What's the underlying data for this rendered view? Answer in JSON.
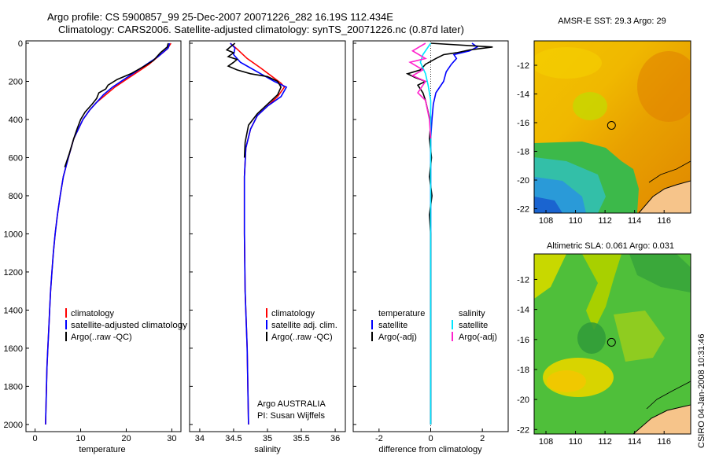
{
  "title_line1": "Argo profile: CS 5900857_99 25-Dec-2007 20071226_282 16.19S 112.434E",
  "title_line2": "Climatology: CARS2006. Satellite-adjusted climatology: synTS_20071226.nc (0.87d later)",
  "stamp": "CSIRO 04-Jan-2008 10:31:46",
  "colors": {
    "clim": "#ff0000",
    "sat": "#0000ff",
    "argo": "#000000",
    "sal_sat": "#00e5ff",
    "sal_argo": "#ff22cc"
  },
  "chart_data": [
    {
      "type": "line",
      "id": "temperature",
      "xlabel": "temperature",
      "ylabel": "",
      "xlim": [
        -2,
        32
      ],
      "ylim": [
        2050,
        0
      ],
      "xticks": [
        "0",
        "10",
        "20",
        "30"
      ],
      "yticks": [
        "0",
        "200",
        "400",
        "600",
        "800",
        "1000",
        "1200",
        "1400",
        "1600",
        "1800",
        "2000"
      ],
      "legend": [
        "climatology",
        "satellite-adjusted climatology",
        "Argo(..raw -QC)"
      ],
      "series": [
        {
          "name": "climatology",
          "color": "#ff0000",
          "points": [
            [
              29.8,
              0
            ],
            [
              29,
              30
            ],
            [
              27,
              70
            ],
            [
              25,
              110
            ],
            [
              22.5,
              150
            ],
            [
              20,
              190
            ],
            [
              17.5,
              230
            ],
            [
              15.5,
              270
            ],
            [
              13.5,
              310
            ],
            [
              12,
              350
            ],
            [
              10.5,
              400
            ],
            [
              9.5,
              450
            ],
            [
              8.5,
              500
            ],
            [
              7.3,
              600
            ],
            [
              6.2,
              700
            ],
            [
              5.5,
              800
            ],
            [
              4.9,
              900
            ],
            [
              4.4,
              1000
            ],
            [
              4,
              1100
            ],
            [
              3.7,
              1200
            ],
            [
              3.4,
              1300
            ],
            [
              3.2,
              1400
            ],
            [
              3,
              1500
            ],
            [
              2.8,
              1600
            ],
            [
              2.6,
              1700
            ],
            [
              2.5,
              1800
            ],
            [
              2.4,
              1900
            ],
            [
              2.3,
              2000
            ]
          ]
        },
        {
          "name": "satellite-adjusted climatology",
          "color": "#0000ff",
          "points": [
            [
              29.5,
              0
            ],
            [
              29.2,
              25
            ],
            [
              27,
              70
            ],
            [
              24.5,
              110
            ],
            [
              22,
              150
            ],
            [
              19.5,
              190
            ],
            [
              17,
              230
            ],
            [
              15,
              270
            ],
            [
              13.5,
              310
            ],
            [
              12,
              350
            ],
            [
              10.5,
              400
            ],
            [
              9.5,
              450
            ],
            [
              8.5,
              500
            ],
            [
              7.3,
              600
            ],
            [
              6.2,
              700
            ],
            [
              5.5,
              800
            ],
            [
              4.9,
              900
            ],
            [
              4.4,
              1000
            ],
            [
              4,
              1100
            ],
            [
              3.7,
              1200
            ],
            [
              3.4,
              1300
            ],
            [
              3.2,
              1400
            ],
            [
              3,
              1500
            ],
            [
              2.8,
              1600
            ],
            [
              2.6,
              1700
            ],
            [
              2.5,
              1800
            ],
            [
              2.4,
              1900
            ],
            [
              2.3,
              2000
            ]
          ]
        },
        {
          "name": "Argo(..raw -QC)",
          "color": "#000000",
          "points": [
            [
              29.2,
              0
            ],
            [
              29,
              20
            ],
            [
              27.5,
              50
            ],
            [
              26,
              90
            ],
            [
              24,
              120
            ],
            [
              21,
              160
            ],
            [
              18,
              190
            ],
            [
              16,
              220
            ],
            [
              15.5,
              240
            ],
            [
              14,
              260
            ],
            [
              13.5,
              290
            ],
            [
              12.5,
              320
            ],
            [
              11,
              360
            ],
            [
              10,
              400
            ],
            [
              9.2,
              450
            ],
            [
              8.5,
              500
            ],
            [
              7.5,
              580
            ],
            [
              6.5,
              650
            ]
          ]
        }
      ]
    },
    {
      "type": "line",
      "id": "salinity",
      "xlabel": "salinity",
      "ylabel": "",
      "xlim": [
        33.85,
        36.15
      ],
      "ylim": [
        2050,
        0
      ],
      "xticks": [
        "34",
        "34.5",
        "35",
        "35.5",
        "36"
      ],
      "legend": [
        "climatology",
        "satellite adj. clim.",
        "Argo(..raw -QC)"
      ],
      "annotation": [
        "Argo AUSTRALIA",
        "PI: Susan Wijffels"
      ],
      "series": [
        {
          "name": "climatology",
          "color": "#ff0000",
          "points": [
            [
              34.45,
              0
            ],
            [
              34.55,
              30
            ],
            [
              34.7,
              80
            ],
            [
              34.9,
              130
            ],
            [
              35.05,
              170
            ],
            [
              35.2,
              210
            ],
            [
              35.25,
              230
            ],
            [
              35.15,
              280
            ],
            [
              35.0,
              330
            ],
            [
              34.85,
              380
            ],
            [
              34.75,
              450
            ],
            [
              34.68,
              550
            ],
            [
              34.66,
              700
            ],
            [
              34.66,
              1000
            ],
            [
              34.67,
              1300
            ],
            [
              34.7,
              1600
            ],
            [
              34.72,
              2000
            ]
          ]
        },
        {
          "name": "satellite adj. clim.",
          "color": "#0000ff",
          "points": [
            [
              34.45,
              0
            ],
            [
              34.52,
              25
            ],
            [
              34.5,
              60
            ],
            [
              34.6,
              100
            ],
            [
              34.75,
              130
            ],
            [
              34.9,
              160
            ],
            [
              35.1,
              200
            ],
            [
              35.28,
              230
            ],
            [
              35.2,
              280
            ],
            [
              35.0,
              330
            ],
            [
              34.85,
              380
            ],
            [
              34.75,
              450
            ],
            [
              34.68,
              550
            ],
            [
              34.66,
              700
            ],
            [
              34.66,
              1000
            ],
            [
              34.67,
              1300
            ],
            [
              34.7,
              1600
            ],
            [
              34.72,
              2000
            ]
          ]
        },
        {
          "name": "Argo(..raw -QC)",
          "color": "#000000",
          "points": [
            [
              34.52,
              0
            ],
            [
              34.45,
              20
            ],
            [
              34.4,
              35
            ],
            [
              34.5,
              50
            ],
            [
              34.42,
              70
            ],
            [
              34.55,
              85
            ],
            [
              34.5,
              100
            ],
            [
              34.42,
              120
            ],
            [
              34.55,
              140
            ],
            [
              34.75,
              160
            ],
            [
              35.0,
              175
            ],
            [
              35.15,
              200
            ],
            [
              35.2,
              230
            ],
            [
              35.15,
              270
            ],
            [
              35.0,
              320
            ],
            [
              34.85,
              370
            ],
            [
              34.72,
              430
            ],
            [
              34.67,
              520
            ],
            [
              34.66,
              600
            ]
          ]
        }
      ]
    },
    {
      "type": "line",
      "id": "difference",
      "xlabel": "difference from climatology",
      "ylabel": "",
      "xlim": [
        -3,
        3
      ],
      "ylim": [
        2050,
        0
      ],
      "xticks": [
        "-2",
        "0",
        "2"
      ],
      "legend_temperature": [
        "temperature",
        "satellite",
        "Argo(-adj)"
      ],
      "legend_salinity": [
        "salinity",
        "satellite",
        "Argo(-adj)"
      ],
      "series": [
        {
          "name": "temperature satellite",
          "color": "#0000ff",
          "points": [
            [
              1.6,
              0
            ],
            [
              1.8,
              20
            ],
            [
              1.5,
              40
            ],
            [
              0.9,
              60
            ],
            [
              1.0,
              80
            ],
            [
              0.8,
              110
            ],
            [
              0.6,
              150
            ],
            [
              0.5,
              200
            ],
            [
              0.2,
              260
            ],
            [
              0.1,
              320
            ],
            [
              0.05,
              400
            ],
            [
              0,
              500
            ],
            [
              0,
              800
            ],
            [
              0,
              1200
            ],
            [
              0,
              1600
            ],
            [
              0,
              2000
            ]
          ]
        },
        {
          "name": "temperature Argo(-adj)",
          "color": "#000000",
          "points": [
            [
              0,
              0
            ],
            [
              2.4,
              20
            ],
            [
              1.5,
              35
            ],
            [
              1.0,
              50
            ],
            [
              0.5,
              60
            ],
            [
              0.2,
              80
            ],
            [
              -0.2,
              110
            ],
            [
              -0.4,
              140
            ],
            [
              -0.9,
              160
            ],
            [
              -0.6,
              180
            ],
            [
              -0.2,
              200
            ],
            [
              -0.5,
              220
            ],
            [
              -0.3,
              260
            ],
            [
              -0.2,
              300
            ],
            [
              -0.1,
              360
            ],
            [
              0,
              420
            ],
            [
              -0.05,
              500
            ],
            [
              0.03,
              600
            ],
            [
              -0.05,
              700
            ],
            [
              0.05,
              800
            ],
            [
              -0.05,
              900
            ],
            [
              0,
              1000
            ],
            [
              0,
              1500
            ],
            [
              0,
              2000
            ]
          ]
        },
        {
          "name": "salinity satellite",
          "color": "#00e5ff",
          "points": [
            [
              0,
              0
            ],
            [
              -0.3,
              60
            ],
            [
              -0.4,
              100
            ],
            [
              -0.2,
              160
            ],
            [
              -0.1,
              220
            ],
            [
              0,
              300
            ],
            [
              0,
              2000
            ]
          ]
        },
        {
          "name": "salinity Argo(-adj)",
          "color": "#ff22cc",
          "points": [
            [
              -0.2,
              0
            ],
            [
              -0.7,
              40
            ],
            [
              -0.2,
              80
            ],
            [
              -0.8,
              100
            ],
            [
              -0.3,
              140
            ],
            [
              -0.7,
              170
            ],
            [
              -0.2,
              200
            ],
            [
              -0.5,
              260
            ],
            [
              -0.2,
              300
            ],
            [
              -0.05,
              400
            ],
            [
              0,
              500
            ]
          ]
        }
      ]
    },
    {
      "type": "heatmap",
      "id": "sst",
      "title": "AMSR-E SST: 29.3 Argo: 29",
      "xticks": [
        "108",
        "110",
        "112",
        "114",
        "116"
      ],
      "yticks": [
        "-12",
        "-14",
        "-16",
        "-18",
        "-20",
        "-22"
      ],
      "xlim": [
        107.2,
        117.8
      ],
      "ylim": [
        -22.3,
        -10.3
      ],
      "marker": [
        112.434,
        -16.19
      ]
    },
    {
      "type": "heatmap",
      "id": "sla",
      "title": "Altimetric SLA: 0.061 Argo: 0.031",
      "xticks": [
        "108",
        "110",
        "112",
        "114",
        "116"
      ],
      "yticks": [
        "-12",
        "-14",
        "-16",
        "-18",
        "-20",
        "-22"
      ],
      "xlim": [
        107.2,
        117.8
      ],
      "ylim": [
        -22.3,
        -10.3
      ],
      "marker": [
        112.434,
        -16.19
      ]
    }
  ]
}
